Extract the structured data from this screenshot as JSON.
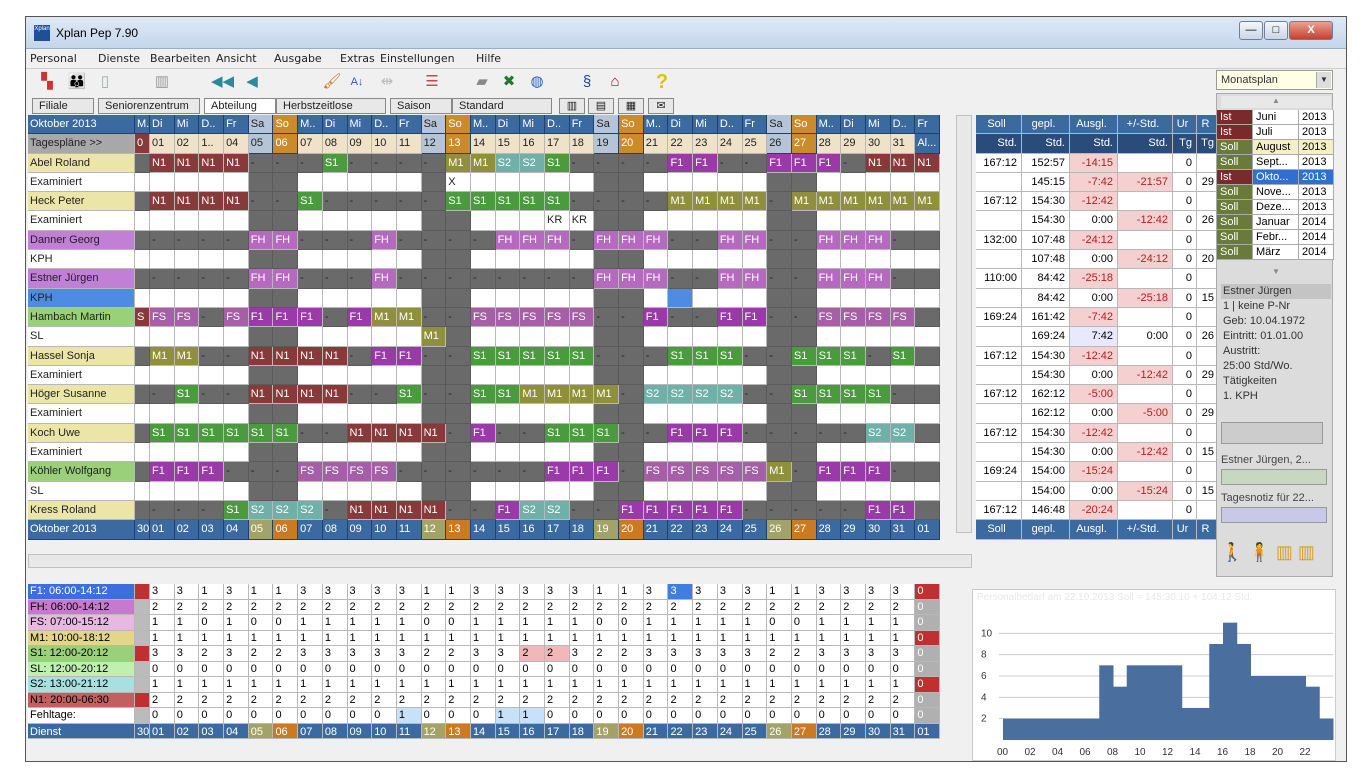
{
  "window": {
    "title": "Xplan Pep 7.90",
    "minimize": "—",
    "maximize": "□",
    "close": "X",
    "app_icon": "Xplan"
  },
  "menu": [
    "Personal",
    "Dienste",
    "Bearbeiten",
    "Ansicht",
    "Ausgabe",
    "Extras",
    "Einstellungen",
    "Hilfe"
  ],
  "toolbar_icons": [
    "org-chart-icon",
    "people-icon",
    "copy-icon",
    "columns-icon",
    "first-page-icon",
    "prev-page-icon",
    "brush-icon",
    "sort-az-icon",
    "arrows-icon",
    "list-icon",
    "eraser-icon",
    "excel-icon",
    "web-icon",
    "paragraph-icon",
    "house-icon",
    "help-icon"
  ],
  "mode_select": {
    "value": "Monatsplan"
  },
  "tabs": [
    "Filiale",
    "Seniorenzentrum",
    "Abteilung",
    "Herbstzeitlose",
    "Saison",
    "Standard"
  ],
  "month_label": "Oktober 2013",
  "tagesplaene": "Tagespläne >>",
  "weekdays": [
    "M..",
    "Di",
    "Mi",
    "D..",
    "Fr",
    "Sa",
    "So",
    "M..",
    "Di",
    "Mi",
    "D..",
    "Fr",
    "Sa",
    "So",
    "M..",
    "Di",
    "Mi",
    "D..",
    "Fr",
    "Sa",
    "So",
    "M..",
    "Di",
    "Mi",
    "D..",
    "Fr",
    "Sa",
    "So",
    "M..",
    "Di",
    "Mi",
    "D..",
    "Fr"
  ],
  "days": [
    "0",
    "01",
    "02",
    "1..",
    "04",
    "05",
    "06",
    "07",
    "08",
    "09",
    "10",
    "11",
    "12",
    "13",
    "14",
    "15",
    "16",
    "17",
    "18",
    "19",
    "20",
    "21",
    "22",
    "23",
    "24",
    "25",
    "26",
    "27",
    "28",
    "29",
    "30",
    "31",
    "Al..."
  ],
  "footer_days": [
    "30",
    "01",
    "02",
    "03",
    "04",
    "05",
    "06",
    "07",
    "08",
    "09",
    "10",
    "11",
    "12",
    "13",
    "14",
    "15",
    "16",
    "17",
    "18",
    "19",
    "20",
    "21",
    "22",
    "23",
    "24",
    "25",
    "26",
    "27",
    "28",
    "29",
    "30",
    "31",
    "01"
  ],
  "staff": [
    {
      "name": "Abel Roland",
      "sub": "Examiniert",
      "row": "|N1|N1|N1|N1|-|-|-|S1|-|-|-|-|M1|M1|S2|S2|S1|-|-|-|-|F1|F1|-|-|F1|F1|F1|-|N1|N1|N1",
      "row2": "|||||||||||||X||||||||||||||||||"
    },
    {
      "name": "Heck Peter",
      "sub": "Examiniert",
      "row": "|N1|N1|N1|N1|-|-|S1|-|-|-|-|-|S1|S1|S1|S1|S1|-|-|-|-|M1|M1|M1|M1|-|M1|M1|M1|M1|M1|M1",
      "row2": "|||||||||||||||||KR|KR|||||||||||||||"
    },
    {
      "name": "Danner Georg",
      "sub": "KPH",
      "row": "|-|-|-|-|FH|FH|-|-|-|FH|-|-|-|-|FH|FH|FH|-|FH|FH|FH|-|-|FH|FH|-|-|FH|FH|FH|-|",
      "row2": ""
    },
    {
      "name": "Estner Jürgen",
      "sub": "KPH",
      "row": "|-|-|-|-|FH|FH|-|-|-|FH|-|-|-|-|-|-|-|-|FH|FH|FH|-|-|FH|FH|-|-|FH|FH|FH|-|",
      "row2": ""
    },
    {
      "name": "Hambach Martin",
      "sub": "SL",
      "row": "S|FS|FS|-|FS|F1|F1|F1|-|F1|M1|M1|-|-|FS|FS|FS|FS|FS|-|-|F1|-|-|F1|F1|-|-|FS|FS|FS|FS",
      "row2": "||||||||||||M1|||||||||||||||||||"
    },
    {
      "name": "Hassel Sonja",
      "sub": "Examiniert",
      "row": "|M1|M1|-|-|N1|N1|N1|N1|-|F1|F1|-|-|S1|S1|S1|S1|S1|-|-|-|S1|S1|S1|-|-|S1|S1|S1|-|S1",
      "row2": ""
    },
    {
      "name": "Höger Susanne",
      "sub": "Examiniert",
      "row": "|-|S1|-|-|N1|N1|N1|N1|-|-|S1|-|-|S1|S1|M1|M1|M1|M1|-|S2|S2|S2|S2|-|-|S1|S1|S1|S1|-",
      "row2": ""
    },
    {
      "name": "Koch Uwe",
      "sub": "Examiniert",
      "row": "|S1|S1|S1|S1|S1|S1|-|-|N1|N1|N1|N1|-|F1|-|-|S1|S1|S1|-|-|F1|F1|F1|-|-|-|-|-|S2|S2",
      "row2": ""
    },
    {
      "name": "Köhler Wolfgang",
      "sub": "SL",
      "row": "|F1|F1|F1|-|-|-|FS|FS|FS|FS|-|-|-|-|-|-|F1|F1|F1|-|FS|FS|FS|FS|FS|M1|-|F1|F1|F1|-",
      "row2": ""
    },
    {
      "name": "Kress Roland",
      "sub": "",
      "row": "|-|-|-|S1|S2|S2|S2|-|N1|N1|N1|N1|-|-|F1|S2|S2|-|-|F1|F1|F1|F1|F1|-|-|-|-|-|F1|F1",
      "row2": ""
    }
  ],
  "right_headers": [
    "Soll",
    "gepl.",
    "Ausgl.",
    "+/-Std.",
    "Ur",
    "R"
  ],
  "right_units": [
    "Std.",
    "Std.",
    "Std.",
    "Std.",
    "Tg",
    "Tg"
  ],
  "right_rows": [
    [
      "167:12",
      "152:57",
      "-14:15",
      "",
      "0",
      ""
    ],
    [
      "",
      "145:15",
      "-7:42",
      "-21:57",
      "0",
      "29"
    ],
    [
      "167:12",
      "154:30",
      "-12:42",
      "",
      "0",
      ""
    ],
    [
      "",
      "154:30",
      "0:00",
      "-12:42",
      "0",
      "26"
    ],
    [
      "132:00",
      "107:48",
      "-24:12",
      "",
      "0",
      ""
    ],
    [
      "",
      "107:48",
      "0:00",
      "-24:12",
      "0",
      "20"
    ],
    [
      "110:00",
      "84:42",
      "-25:18",
      "",
      "0",
      ""
    ],
    [
      "",
      "84:42",
      "0:00",
      "-25:18",
      "0",
      "15"
    ],
    [
      "169:24",
      "161:42",
      "-7:42",
      "",
      "0",
      ""
    ],
    [
      "",
      "169:24",
      "7:42",
      "0:00",
      "0",
      "26"
    ],
    [
      "167:12",
      "154:30",
      "-12:42",
      "",
      "0",
      ""
    ],
    [
      "",
      "154:30",
      "0:00",
      "-12:42",
      "0",
      "29"
    ],
    [
      "167:12",
      "162:12",
      "-5:00",
      "",
      "0",
      ""
    ],
    [
      "",
      "162:12",
      "0:00",
      "-5:00",
      "0",
      "29"
    ],
    [
      "167:12",
      "154:30",
      "-12:42",
      "",
      "0",
      ""
    ],
    [
      "",
      "154:30",
      "0:00",
      "-12:42",
      "0",
      "15"
    ],
    [
      "169:24",
      "154:00",
      "-15:24",
      "",
      "0",
      ""
    ],
    [
      "",
      "154:00",
      "0:00",
      "-15:24",
      "0",
      "15"
    ],
    [
      "167:12",
      "146:48",
      "-20:24",
      "",
      "0",
      ""
    ]
  ],
  "months": [
    {
      "k": "Ist",
      "m": "Juni",
      "y": "2013"
    },
    {
      "k": "Ist",
      "m": "Juli",
      "y": "2013"
    },
    {
      "k": "Soll",
      "m": "August",
      "y": "2013"
    },
    {
      "k": "Soll",
      "m": "Sept...",
      "y": "2013"
    },
    {
      "k": "Ist",
      "m": "Okto...",
      "y": "2013"
    },
    {
      "k": "Soll",
      "m": "Nove...",
      "y": "2013"
    },
    {
      "k": "Soll",
      "m": "Deze...",
      "y": "2013"
    },
    {
      "k": "Soll",
      "m": "Januar",
      "y": "2014"
    },
    {
      "k": "Soll",
      "m": "Febr...",
      "y": "2014"
    },
    {
      "k": "Soll",
      "m": "März",
      "y": "2014"
    }
  ],
  "info": {
    "name": "Estner Jürgen",
    "lines": [
      "1 | keine P-Nr",
      "Geb: 10.04.1972",
      "Eintritt: 01.01.00",
      "Austritt:",
      "25:00 Std/Wo.",
      "Tätigkeiten",
      "1. KPH"
    ],
    "note1": "Estner Jürgen, 2...",
    "note2": "Tagesnotiz für 22..."
  },
  "shifts": [
    {
      "label": "F1: 06:00-14:12",
      "color": "#3d6ee0",
      "vals": [
        "3",
        "3",
        "1",
        "3",
        "1",
        "1",
        "3",
        "3",
        "3",
        "3",
        "3",
        "1",
        "1",
        "3",
        "3",
        "3",
        "3",
        "3",
        "1",
        "1",
        "3",
        "3",
        "3",
        "3",
        "3",
        "1",
        "1",
        "3",
        "3",
        "3",
        "3"
      ],
      "end": "0"
    },
    {
      "label": "FH: 06:00-14:12",
      "color": "#c77acd",
      "vals": [
        "2",
        "2",
        "2",
        "2",
        "2",
        "2",
        "2",
        "2",
        "2",
        "2",
        "2",
        "2",
        "2",
        "2",
        "2",
        "2",
        "2",
        "2",
        "2",
        "2",
        "2",
        "2",
        "2",
        "2",
        "2",
        "2",
        "2",
        "2",
        "2",
        "2",
        "2"
      ],
      "end": "0"
    },
    {
      "label": "FS: 07:00-15:12",
      "color": "#e8b8e0",
      "vals": [
        "1",
        "1",
        "0",
        "1",
        "0",
        "0",
        "1",
        "1",
        "1",
        "1",
        "1",
        "0",
        "0",
        "1",
        "1",
        "1",
        "1",
        "1",
        "0",
        "0",
        "1",
        "1",
        "1",
        "1",
        "1",
        "0",
        "0",
        "1",
        "1",
        "1",
        "1"
      ],
      "end": "0"
    },
    {
      "label": "M1: 10:00-18:12",
      "color": "#e3d58a",
      "vals": [
        "1",
        "1",
        "1",
        "1",
        "1",
        "1",
        "1",
        "1",
        "1",
        "1",
        "1",
        "1",
        "1",
        "1",
        "1",
        "1",
        "1",
        "1",
        "1",
        "1",
        "1",
        "1",
        "1",
        "1",
        "1",
        "1",
        "1",
        "1",
        "1",
        "1",
        "1"
      ],
      "end": "0"
    },
    {
      "label": "S1: 12:00-20:12",
      "color": "#9ad07a",
      "vals": [
        "3",
        "3",
        "2",
        "3",
        "2",
        "2",
        "3",
        "3",
        "3",
        "3",
        "3",
        "2",
        "2",
        "3",
        "3",
        "2",
        "2",
        "3",
        "2",
        "2",
        "3",
        "3",
        "3",
        "3",
        "3",
        "2",
        "2",
        "3",
        "3",
        "3",
        "3"
      ],
      "end": "0"
    },
    {
      "label": "SL: 12:00-20:12",
      "color": "#bff0b0",
      "vals": [
        "0",
        "0",
        "0",
        "0",
        "0",
        "0",
        "0",
        "0",
        "0",
        "0",
        "0",
        "0",
        "0",
        "0",
        "0",
        "0",
        "0",
        "0",
        "0",
        "0",
        "0",
        "0",
        "0",
        "0",
        "0",
        "0",
        "0",
        "0",
        "0",
        "0",
        "0"
      ],
      "end": "0"
    },
    {
      "label": "S2: 13:00-21:12",
      "color": "#a8e0e0",
      "vals": [
        "1",
        "1",
        "1",
        "1",
        "1",
        "1",
        "1",
        "1",
        "1",
        "1",
        "1",
        "1",
        "1",
        "1",
        "1",
        "1",
        "1",
        "1",
        "1",
        "1",
        "1",
        "1",
        "1",
        "1",
        "1",
        "1",
        "1",
        "1",
        "1",
        "1",
        "1"
      ],
      "end": "0"
    },
    {
      "label": "N1: 20:00-06:30",
      "color": "#c06060",
      "vals": [
        "2",
        "2",
        "2",
        "2",
        "2",
        "2",
        "2",
        "2",
        "2",
        "2",
        "2",
        "2",
        "2",
        "2",
        "2",
        "2",
        "2",
        "2",
        "2",
        "2",
        "2",
        "2",
        "2",
        "2",
        "2",
        "2",
        "2",
        "2",
        "2",
        "2",
        "2"
      ],
      "end": "0"
    },
    {
      "label": "Fehltage:",
      "color": "#ffffff",
      "vals": [
        "0",
        "0",
        "0",
        "0",
        "0",
        "0",
        "0",
        "0",
        "0",
        "0",
        "1",
        "0",
        "0",
        "0",
        "1",
        "1",
        "0",
        "0",
        "0",
        "0",
        "0",
        "0",
        "0",
        "0",
        "0",
        "0",
        "0",
        "0",
        "0",
        "0",
        "0"
      ],
      "end": "0"
    }
  ],
  "dienst_label": "Dienst",
  "chart_data": {
    "type": "area",
    "title": "Personalbedarf am 22.10.2013  Soll = 145:30:10 + 104:12 Std.",
    "x_ticks": [
      "00",
      "02",
      "04",
      "06",
      "08",
      "10",
      "12",
      "14",
      "16",
      "18",
      "20",
      "22"
    ],
    "y_ticks": [
      "2",
      "4",
      "6",
      "8",
      "10"
    ],
    "ylim": [
      0,
      12
    ],
    "x": [
      0,
      1,
      2,
      3,
      4,
      5,
      6,
      7,
      8,
      9,
      10,
      11,
      12,
      13,
      14,
      15,
      16,
      17,
      18,
      19,
      20,
      21,
      22,
      23
    ],
    "values": [
      2,
      2,
      2,
      2,
      2,
      2,
      2,
      7,
      5,
      7,
      7,
      7,
      7,
      3,
      3,
      9,
      11,
      9,
      6,
      6,
      6,
      6,
      5,
      2
    ],
    "color": "#4a6e9e"
  }
}
